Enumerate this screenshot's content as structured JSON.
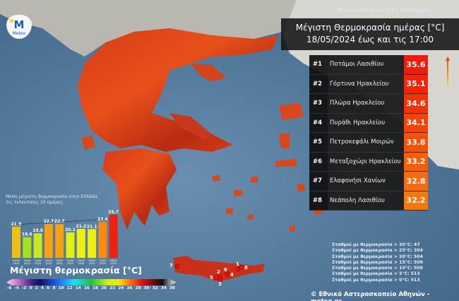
{
  "header": {
    "source": "Δεδομένα από: 513 σταθμούς",
    "title_line1": "Μέγιστη Θερμοκρασία ημέρας [°C]",
    "title_line2": "18/05/2024 έως και τις 17:00"
  },
  "logo": {
    "text": "Meteo"
  },
  "ranking": [
    {
      "rank": "#1",
      "name": "Ποτάμοι Λασιθίου",
      "value": "35.6",
      "color": "#f21a0a"
    },
    {
      "rank": "#2",
      "name": "Γόρτυνα Ηρακλείου",
      "value": "35.1",
      "color": "#f3240a"
    },
    {
      "rank": "#3",
      "name": "Πλώρα Ηρακλείου",
      "value": "34.6",
      "color": "#f4320a"
    },
    {
      "rank": "#4",
      "name": "Πυράθι Ηρακλείου",
      "value": "34.1",
      "color": "#f5420a"
    },
    {
      "rank": "#5",
      "name": "Πετροκεφάλι Μοιρών",
      "value": "33.8",
      "color": "#f6500a"
    },
    {
      "rank": "#6",
      "name": "Μεταξοχώρι Ηρακλείου",
      "value": "33.2",
      "color": "#f75e0a"
    },
    {
      "rank": "#7",
      "name": "Ελαφονήσι Χανίων",
      "value": "32.8",
      "color": "#f86a0c"
    },
    {
      "rank": "#8",
      "name": "Νεάπολη Λασιθίου",
      "value": "32.2",
      "color": "#f9760e"
    }
  ],
  "map_markers": [
    "1",
    "2",
    "3",
    "4",
    "5",
    "6",
    "7",
    "8"
  ],
  "stats": [
    "Σταθμοί με θερμοκρασία > 30°C: 47",
    "Σταθμοί με θερμοκρασία > 25°C: 304",
    "Σταθμοί με θερμοκρασία > 20°C: 504",
    "Σταθμοί με θερμοκρασία > 15°C: 509",
    "Σταθμοί με θερμοκρασία > 10°C: 509",
    "Σταθμοί με θερμοκρασία > 5°C: 513",
    "Σταθμοί με θερμοκρασία > 0°C: 513"
  ],
  "footer": {
    "copyright": "© Εθνικό Αστεροσκοπείο Αθηνών - meteo.gr"
  },
  "legend": {
    "title": "Μέγιστη θερμοκρασία [°C]",
    "ticks": [
      "-6",
      "-4",
      "-2",
      "0",
      "2",
      "4",
      "6",
      "8",
      "10",
      "12",
      "14",
      "16",
      "18",
      "20",
      "22",
      "24",
      "26",
      "28",
      "30",
      "32",
      "34",
      "36"
    ]
  },
  "chart_data": {
    "type": "bar",
    "title_line1": "Μέση μέγιστη θερμοκρασία στην Ελλάδα",
    "title_line2": "τις τελευταίες 10 ημέρες",
    "categories": [
      "09/05 2024",
      "10/05 2024",
      "11/05 2024",
      "12/05 2024",
      "13/05 2024",
      "14/05 2024",
      "15/05 2024",
      "16/05 2024",
      "17/05 2024",
      "18/05 2024"
    ],
    "values": [
      21.9,
      18.6,
      19.8,
      22.7,
      22.7,
      20.1,
      21.2,
      21.1,
      23.4,
      25.7
    ],
    "colors": [
      "#f0c010",
      "#a8e020",
      "#c8e820",
      "#f8a010",
      "#f8a010",
      "#e0f010",
      "#f0f010",
      "#f0f010",
      "#f88c10",
      "#f02010"
    ],
    "ylim": [
      12,
      27
    ],
    "grid": false
  }
}
